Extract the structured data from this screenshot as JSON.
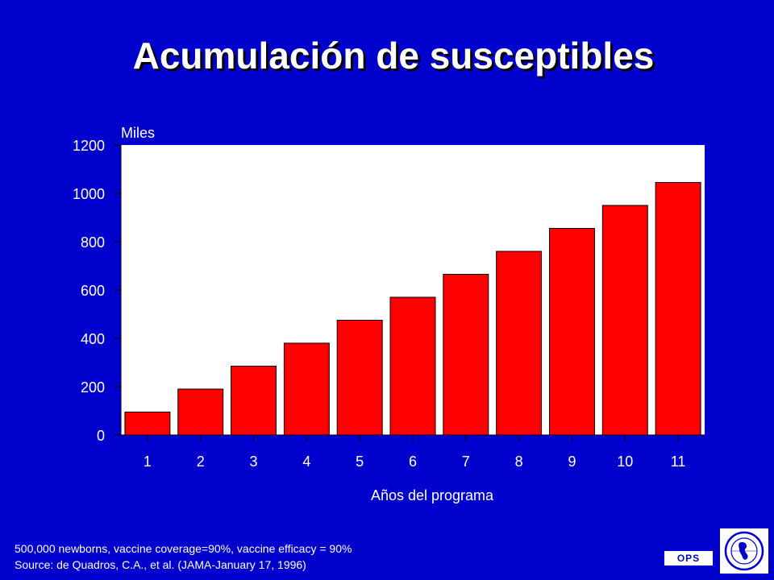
{
  "title": "Acumulación de susceptibles",
  "footnotes": [
    "500,000 newborns, vaccine coverage=90%, vaccine efficacy = 90%",
    "Source: de Quadros, C.A., et al. (JAMA-January 17, 1996)"
  ],
  "ops_label": "OPS",
  "colors": {
    "background": "#0000cc",
    "bar": "#ff0000",
    "plot_area": "#ffffff"
  },
  "logo": {
    "icon": "paho-globe-logo-icon",
    "lettering": "OPS"
  },
  "chart_data": {
    "type": "bar",
    "title": "Acumulación de susceptibles",
    "ylabel": "Miles",
    "xlabel": "Años del programa",
    "categories": [
      "1",
      "2",
      "3",
      "4",
      "5",
      "6",
      "7",
      "8",
      "9",
      "10",
      "11"
    ],
    "values": [
      95,
      190,
      285,
      380,
      475,
      570,
      665,
      760,
      855,
      950,
      1045
    ],
    "ylim": [
      0,
      1200
    ],
    "yticks": [
      0,
      200,
      400,
      600,
      800,
      1000,
      1200
    ],
    "grid": false,
    "legend": "none"
  }
}
